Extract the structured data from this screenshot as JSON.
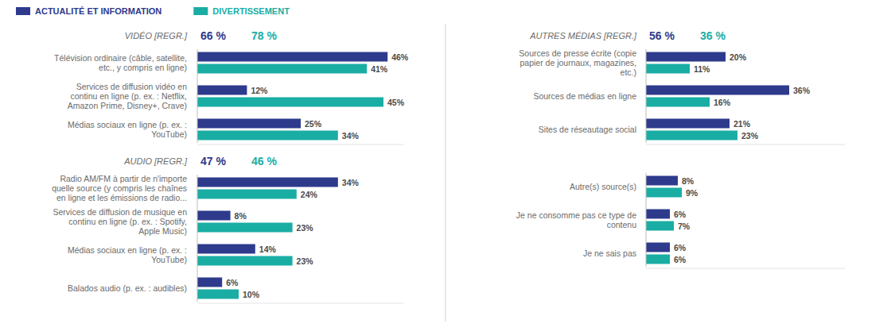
{
  "chart_data": [
    {
      "type": "bar",
      "orientation": "horizontal",
      "legend": "top",
      "data_labels": true,
      "tick_labels": false,
      "subtitle": "VIDÉO [REGR.]",
      "annotations": [
        "66 %",
        "78 %"
      ],
      "xlim": [
        0,
        50
      ],
      "categories": [
        "Télévision ordinaire (câble, satellite,\netc., y compris en ligne)",
        "Services de diffusion vidéo en\ncontinu en ligne (p. ex. : Netflix,\nAmazon Prime, Disney+, Crave)",
        "Médias sociaux en ligne (p. ex. :\nYouTube)"
      ],
      "series": [
        {
          "name": "ACTUALITÉ ET INFORMATION",
          "color": "#2E3A8C",
          "values": [
            46,
            12,
            25
          ],
          "value_labels": [
            "46%",
            "12%",
            "25%"
          ]
        },
        {
          "name": "DIVERTISSEMENT",
          "color": "#1AADA4",
          "values": [
            41,
            45,
            34
          ],
          "value_labels": [
            "41%",
            "45%",
            "34%"
          ]
        }
      ]
    },
    {
      "type": "bar",
      "orientation": "horizontal",
      "data_labels": true,
      "tick_labels": false,
      "subtitle": "AUDIO [REGR.]",
      "annotations": [
        "47 %",
        "46 %"
      ],
      "xlim": [
        0,
        50
      ],
      "categories": [
        "Radio AM/FM à partir de n'importe\nquelle source (y compris les chaînes\nen ligne et les émissions de radio...",
        "Services de diffusion de musique en\ncontinu en ligne (p. ex. : Spotify,\nApple Music)",
        "Médias sociaux en ligne (p. ex. :\nYouTube)",
        "Balados audio (p. ex. : audibles)"
      ],
      "series": [
        {
          "color": "#2E3A8C",
          "values": [
            34,
            8,
            14,
            6
          ],
          "value_labels": [
            "34%",
            "8%",
            "14%",
            "6%"
          ]
        },
        {
          "color": "#1AADA4",
          "values": [
            24,
            23,
            23,
            10
          ],
          "value_labels": [
            "24%",
            "23%",
            "23%",
            "10%"
          ]
        }
      ]
    },
    {
      "type": "bar",
      "orientation": "horizontal",
      "data_labels": true,
      "tick_labels": false,
      "subtitle": "AUTRES MÉDIAS [REGR.]",
      "annotations": [
        "56 %",
        "36 %"
      ],
      "xlim": [
        0,
        50
      ],
      "categories": [
        "Sources de presse écrite (copie\npapier de journaux, magazines,\netc.)",
        "Sources de médias en ligne",
        "Sites de réseautage social"
      ],
      "series": [
        {
          "color": "#2E3A8C",
          "values": [
            20,
            36,
            21
          ],
          "value_labels": [
            "20%",
            "36%",
            "21%"
          ]
        },
        {
          "color": "#1AADA4",
          "values": [
            11,
            16,
            23
          ],
          "value_labels": [
            "11%",
            "16%",
            "23%"
          ]
        }
      ]
    },
    {
      "type": "bar",
      "orientation": "horizontal",
      "data_labels": true,
      "tick_labels": false,
      "xlim": [
        0,
        50
      ],
      "categories": [
        "Autre(s) source(s)",
        "Je ne consomme pas ce type de\ncontenu",
        "Je ne sais pas"
      ],
      "series": [
        {
          "color": "#2E3A8C",
          "values": [
            8,
            6,
            6
          ],
          "value_labels": [
            "8%",
            "6%",
            "6%"
          ]
        },
        {
          "color": "#1AADA4",
          "values": [
            9,
            7,
            6
          ],
          "value_labels": [
            "9%",
            "7%",
            "6%"
          ]
        }
      ]
    }
  ]
}
